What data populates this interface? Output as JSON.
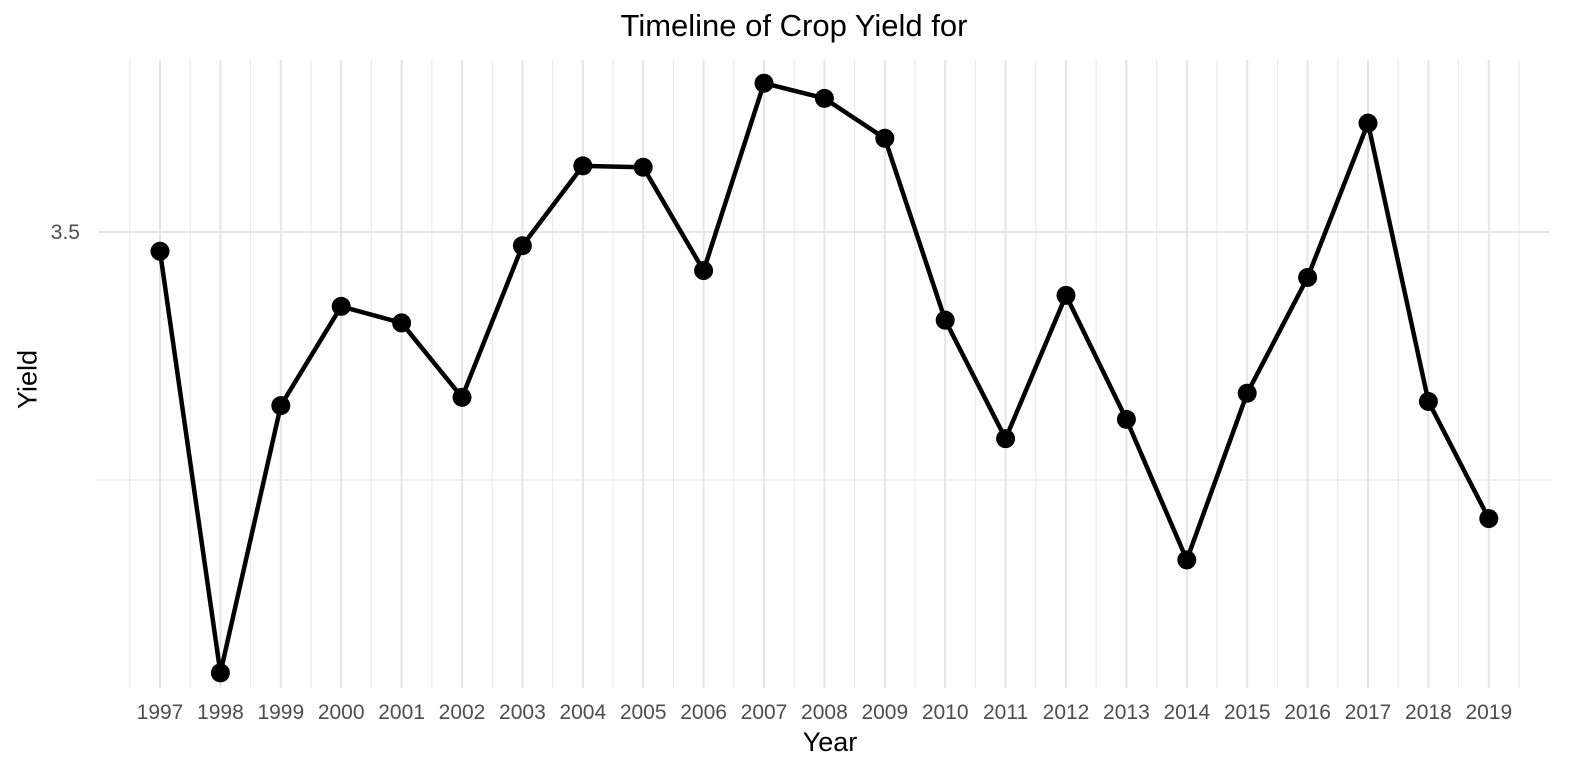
{
  "chart_data": {
    "type": "line",
    "title": "Timeline of Crop Yield for",
    "xlabel": "Year",
    "ylabel": "Yield",
    "x": [
      "1997",
      "1998",
      "1999",
      "2000",
      "2001",
      "2002",
      "2003",
      "2004",
      "2005",
      "2006",
      "2007",
      "2008",
      "2009",
      "2010",
      "2011",
      "2012",
      "2013",
      "2014",
      "2015",
      "2016",
      "2017",
      "2018",
      "2019"
    ],
    "series": [
      {
        "values": [
          3.43,
          1.9,
          2.87,
          3.23,
          3.17,
          2.9,
          3.45,
          3.74,
          3.735,
          3.36,
          4.04,
          3.985,
          3.84,
          3.18,
          2.75,
          3.27,
          2.82,
          2.31,
          2.915,
          3.335,
          3.895,
          2.885,
          2.46
        ],
        "color": "#000000"
      }
    ],
    "yticks": [
      {
        "value": 3.5,
        "label": "3.5"
      }
    ],
    "y_minor_gridline": 2.6,
    "ylim": [
      1.85,
      4.15
    ],
    "grid": true
  }
}
